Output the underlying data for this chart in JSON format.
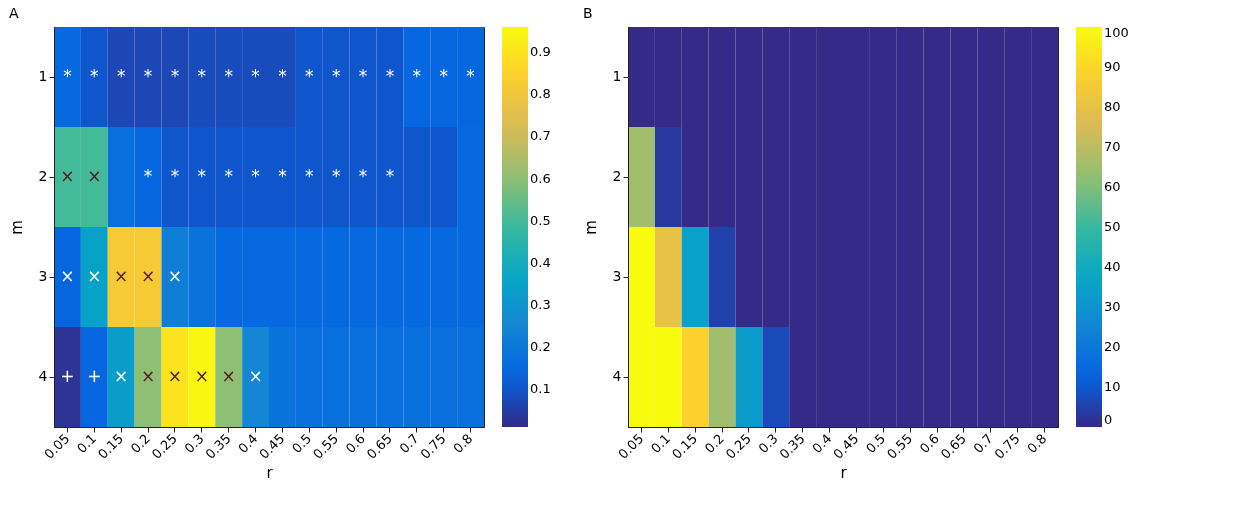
{
  "chart_data": [
    {
      "type": "heatmap",
      "title": "A",
      "xlabel": "r",
      "ylabel": "m",
      "categories": [
        "0.05",
        "0.1",
        "0.15",
        "0.2",
        "0.25",
        "0.3",
        "0.35",
        "0.4",
        "0.45",
        "0.5",
        "0.55",
        "0.6",
        "0.65",
        "0.7",
        "0.75",
        "0.8"
      ],
      "y_categories": [
        "1",
        "2",
        "3",
        "4"
      ],
      "cells": [
        [
          0.15,
          0.1,
          0.07,
          0.07,
          0.07,
          0.08,
          0.08,
          0.08,
          0.08,
          0.1,
          0.1,
          0.1,
          0.1,
          0.14,
          0.14,
          0.14
        ],
        [
          0.5,
          0.5,
          0.17,
          0.14,
          0.1,
          0.1,
          0.1,
          0.1,
          0.1,
          0.1,
          0.1,
          0.1,
          0.1,
          0.1,
          0.1,
          0.15
        ],
        [
          0.14,
          0.35,
          0.82,
          0.82,
          0.22,
          0.18,
          0.15,
          0.15,
          0.15,
          0.15,
          0.15,
          0.15,
          0.15,
          0.15,
          0.15,
          0.15
        ],
        [
          0.03,
          0.14,
          0.33,
          0.6,
          0.9,
          0.95,
          0.6,
          0.25,
          0.18,
          0.17,
          0.17,
          0.17,
          0.17,
          0.17,
          0.17,
          0.17
        ]
      ],
      "cell_labels": [
        [
          "*",
          "*",
          "*",
          "*",
          "*",
          "*",
          "*",
          "*",
          "*",
          "*",
          "*",
          "*",
          "*",
          "*",
          "*",
          "*"
        ],
        [
          "×",
          "×",
          null,
          "*",
          "*",
          "*",
          "*",
          "*",
          "*",
          "*",
          "*",
          "*",
          "*",
          null,
          null,
          null
        ],
        [
          "×",
          "×",
          "×",
          "×",
          "×",
          null,
          null,
          null,
          null,
          null,
          null,
          null,
          null,
          null,
          null,
          null
        ],
        [
          "+",
          "+",
          "×",
          "×",
          "×",
          "×",
          "×",
          "×",
          null,
          null,
          null,
          null,
          null,
          null,
          null,
          null
        ]
      ],
      "clim": [
        0.01,
        0.96
      ],
      "cticks": [
        0.1,
        0.2,
        0.3,
        0.4,
        0.5,
        0.6,
        0.7,
        0.8,
        0.9
      ]
    },
    {
      "type": "heatmap",
      "title": "B",
      "xlabel": "r",
      "ylabel": "m",
      "categories": [
        "0.05",
        "0.1",
        "0.15",
        "0.2",
        "0.25",
        "0.3",
        "0.35",
        "0.4",
        "0.45",
        "0.5",
        "0.55",
        "0.6",
        "0.65",
        "0.7",
        "0.75",
        "0.8"
      ],
      "y_categories": [
        "1",
        "2",
        "3",
        "4"
      ],
      "cells": [
        [
          0,
          0,
          0,
          0,
          0,
          0,
          0,
          0,
          0,
          0,
          0,
          0,
          0,
          0,
          0,
          0
        ],
        [
          65,
          3,
          0,
          0,
          0,
          0,
          0,
          0,
          0,
          0,
          0,
          0,
          0,
          0,
          0,
          0
        ],
        [
          100,
          80,
          35,
          5,
          0,
          0,
          0,
          0,
          0,
          0,
          0,
          0,
          0,
          0,
          0,
          0
        ],
        [
          100,
          100,
          88,
          65,
          33,
          7,
          0,
          0,
          0,
          0,
          0,
          0,
          0,
          0,
          0,
          0
        ]
      ],
      "clim": [
        0,
        100
      ],
      "cticks": [
        0,
        10,
        20,
        30,
        40,
        50,
        60,
        70,
        80,
        90,
        100
      ]
    }
  ]
}
